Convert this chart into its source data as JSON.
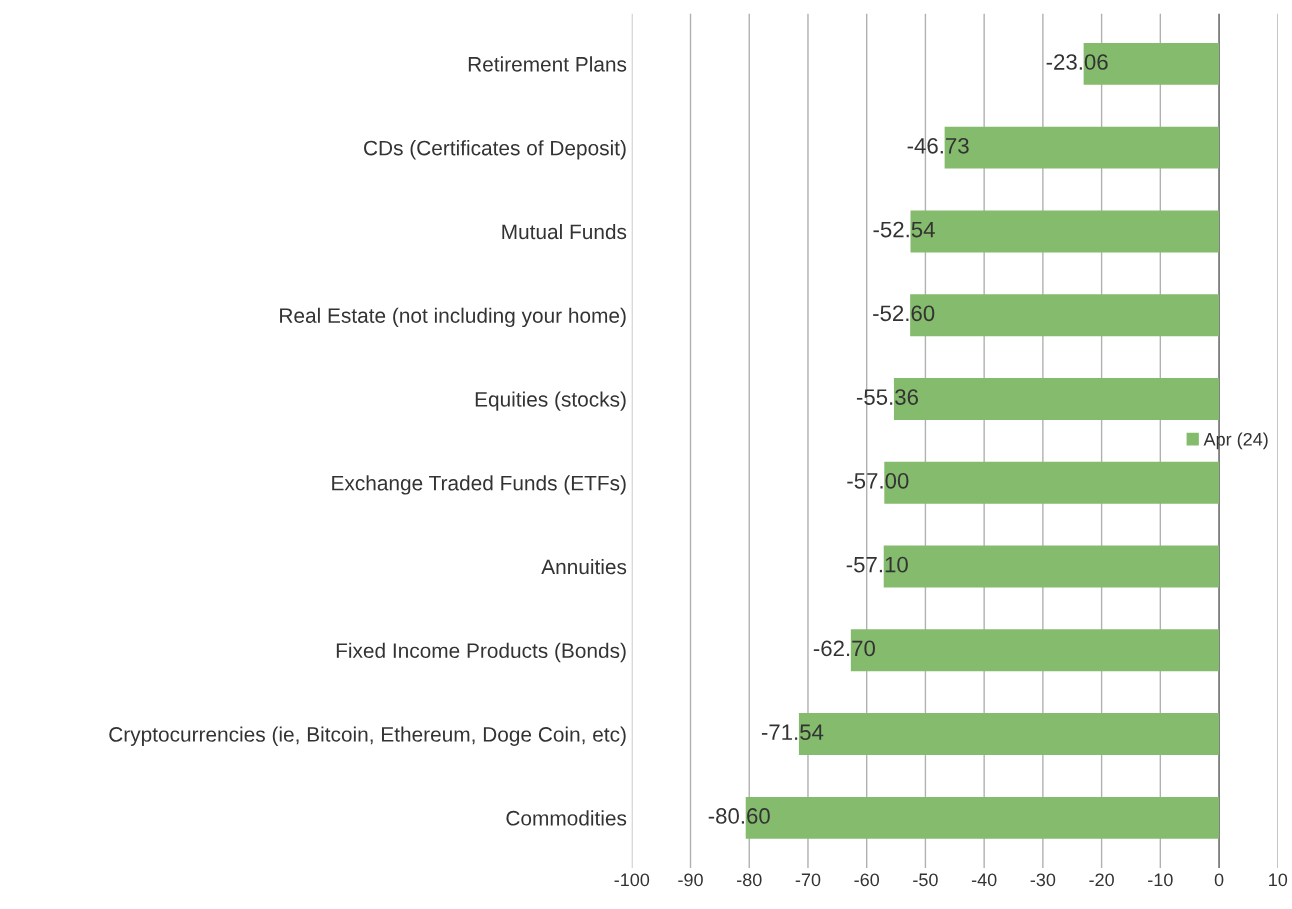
{
  "chart_data": {
    "type": "bar",
    "orientation": "horizontal",
    "categories": [
      "Retirement Plans",
      "CDs (Certificates of Deposit)",
      "Mutual Funds",
      "Real Estate (not including your home)",
      "Equities (stocks)",
      "Exchange Traded Funds (ETFs)",
      "Annuities",
      "Fixed Income Products (Bonds)",
      "Cryptocurrencies (ie, Bitcoin, Ethereum, Doge Coin, etc)",
      "Commodities"
    ],
    "series": [
      {
        "name": "Apr (24)",
        "color": "#84bb6c",
        "values": [
          -23.06,
          -46.73,
          -52.54,
          -52.6,
          -55.36,
          -57.0,
          -57.1,
          -62.7,
          -71.54,
          -80.6
        ],
        "value_labels": [
          "-23.06",
          "-46.73",
          "-52.54",
          "-52.60",
          "-55.36",
          "-57.00",
          "-57.10",
          "-62.70",
          "-71.54",
          "-80.60"
        ]
      }
    ],
    "xlim": [
      -100,
      10
    ],
    "xticks": [
      -100,
      -90,
      -80,
      -70,
      -60,
      -50,
      -40,
      -30,
      -20,
      -10,
      0,
      10
    ],
    "grid": "x",
    "legend": "right"
  }
}
